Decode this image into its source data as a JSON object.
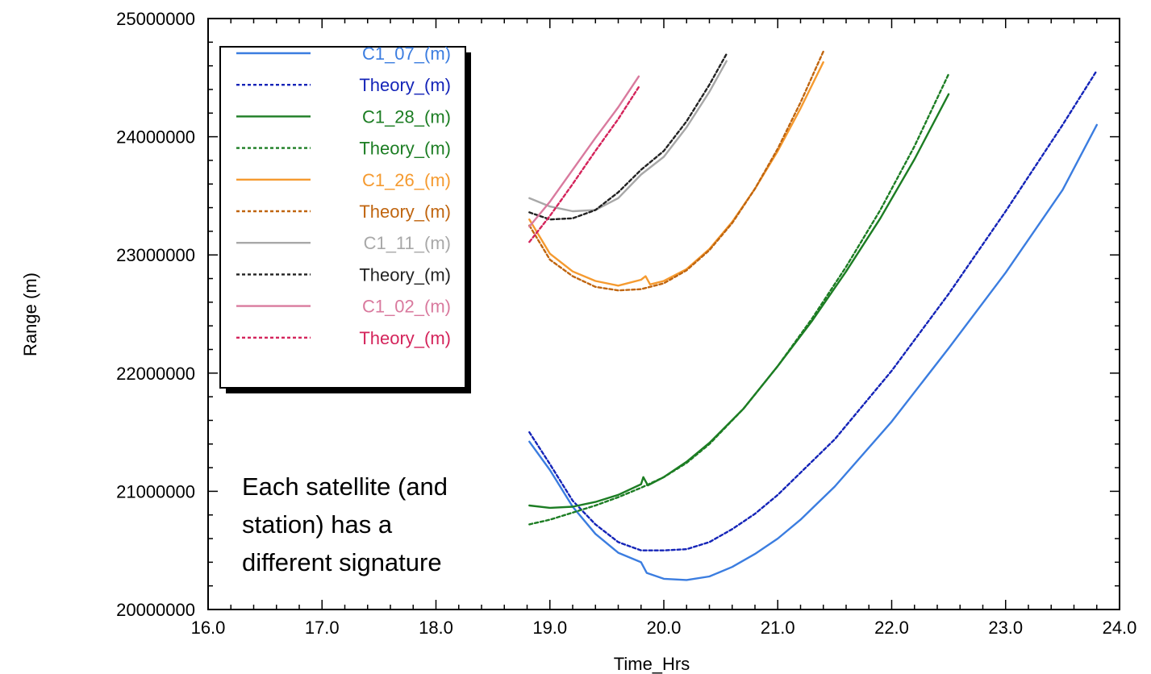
{
  "chart_data": {
    "type": "line",
    "title": "",
    "xlabel": "Time_Hrs",
    "ylabel": "Range (m)",
    "xlim": [
      16.0,
      24.0
    ],
    "ylim": [
      20000000,
      25000000
    ],
    "x_ticks": [
      "16.0",
      "17.0",
      "18.0",
      "19.0",
      "20.0",
      "21.0",
      "22.0",
      "23.0",
      "24.0"
    ],
    "y_ticks": [
      "20000000",
      "21000000",
      "22000000",
      "23000000",
      "24000000",
      "25000000"
    ],
    "grid": false,
    "legend_position": "top-left",
    "annotation": [
      "Each satellite (and",
      "station) has a",
      "different signature"
    ],
    "series": [
      {
        "name": "C1_07_(m)",
        "style": "solid",
        "color": "#3b7de0",
        "x": [
          18.82,
          19.0,
          19.2,
          19.4,
          19.6,
          19.8,
          19.85,
          20.0,
          20.2,
          20.4,
          20.6,
          20.8,
          21.0,
          21.2,
          21.5,
          22.0,
          22.5,
          23.0,
          23.5,
          23.8
        ],
        "y": [
          21420000,
          21180000,
          20870000,
          20640000,
          20480000,
          20400000,
          20310000,
          20260000,
          20250000,
          20280000,
          20360000,
          20470000,
          20600000,
          20760000,
          21040000,
          21590000,
          22210000,
          22850000,
          23550000,
          24100000
        ]
      },
      {
        "name": "Theory_(m)",
        "style": "dotted",
        "color": "#1424b8",
        "x": [
          18.82,
          19.0,
          19.2,
          19.4,
          19.6,
          19.8,
          20.0,
          20.2,
          20.4,
          20.6,
          20.8,
          21.0,
          21.5,
          22.0,
          22.5,
          23.0,
          23.5,
          23.8
        ],
        "y": [
          21500000,
          21230000,
          20920000,
          20720000,
          20570000,
          20500000,
          20500000,
          20510000,
          20570000,
          20680000,
          20810000,
          20970000,
          21440000,
          22020000,
          22670000,
          23370000,
          24100000,
          24560000
        ]
      },
      {
        "name": "C1_28_(m)",
        "style": "solid",
        "color": "#1c7d23",
        "x": [
          18.82,
          19.0,
          19.2,
          19.4,
          19.6,
          19.8,
          19.82,
          19.86,
          20.0,
          20.2,
          20.4,
          20.7,
          21.0,
          21.3,
          21.6,
          21.9,
          22.2,
          22.5
        ],
        "y": [
          20880000,
          20860000,
          20870000,
          20910000,
          20970000,
          21060000,
          21120000,
          21050000,
          21120000,
          21250000,
          21410000,
          21700000,
          22060000,
          22440000,
          22860000,
          23310000,
          23810000,
          24360000
        ]
      },
      {
        "name": "Theory_(m)",
        "style": "dotted",
        "color": "#1c7d23",
        "x": [
          18.82,
          19.0,
          19.2,
          19.4,
          19.6,
          19.8,
          20.0,
          20.2,
          20.4,
          20.7,
          21.0,
          21.3,
          21.6,
          21.9,
          22.2,
          22.5
        ],
        "y": [
          20720000,
          20760000,
          20820000,
          20880000,
          20950000,
          21030000,
          21120000,
          21240000,
          21400000,
          21700000,
          22060000,
          22460000,
          22900000,
          23380000,
          23920000,
          24530000
        ]
      },
      {
        "name": "C1_26_(m)",
        "style": "solid",
        "color": "#f59a2f",
        "x": [
          18.82,
          19.0,
          19.2,
          19.4,
          19.6,
          19.8,
          19.84,
          19.88,
          20.0,
          20.2,
          20.4,
          20.6,
          20.8,
          21.0,
          21.2,
          21.4
        ],
        "y": [
          23300000,
          23010000,
          22860000,
          22780000,
          22740000,
          22790000,
          22820000,
          22750000,
          22780000,
          22880000,
          23050000,
          23280000,
          23560000,
          23880000,
          24240000,
          24630000
        ]
      },
      {
        "name": "Theory_(m)",
        "style": "dotted",
        "color": "#c0650f",
        "x": [
          18.82,
          19.0,
          19.2,
          19.4,
          19.6,
          19.8,
          20.0,
          20.2,
          20.4,
          20.6,
          20.8,
          21.0,
          21.2,
          21.4
        ],
        "y": [
          23250000,
          22960000,
          22820000,
          22730000,
          22700000,
          22710000,
          22760000,
          22870000,
          23040000,
          23270000,
          23560000,
          23900000,
          24290000,
          24720000
        ]
      },
      {
        "name": "C1_11_(m)",
        "style": "solid",
        "color": "#a8a8a8",
        "x": [
          18.82,
          19.0,
          19.2,
          19.4,
          19.6,
          19.8,
          20.0,
          20.2,
          20.4,
          20.55
        ],
        "y": [
          23480000,
          23410000,
          23370000,
          23380000,
          23480000,
          23680000,
          23830000,
          24080000,
          24380000,
          24640000
        ]
      },
      {
        "name": "Theory_(m)",
        "style": "dotted",
        "color": "#222222",
        "x": [
          18.82,
          19.0,
          19.2,
          19.4,
          19.6,
          19.8,
          20.0,
          20.2,
          20.4,
          20.55
        ],
        "y": [
          23360000,
          23300000,
          23310000,
          23380000,
          23530000,
          23720000,
          23880000,
          24130000,
          24440000,
          24700000
        ]
      },
      {
        "name": "C1_02_(m)",
        "style": "solid",
        "color": "#d97a9e",
        "x": [
          18.82,
          19.0,
          19.2,
          19.4,
          19.6,
          19.78
        ],
        "y": [
          23240000,
          23450000,
          23720000,
          23990000,
          24250000,
          24510000
        ]
      },
      {
        "name": "Theory_(m)",
        "style": "dotted",
        "color": "#d4245b",
        "x": [
          18.82,
          19.0,
          19.2,
          19.4,
          19.6,
          19.78
        ],
        "y": [
          23110000,
          23330000,
          23600000,
          23880000,
          24150000,
          24420000
        ]
      }
    ]
  }
}
